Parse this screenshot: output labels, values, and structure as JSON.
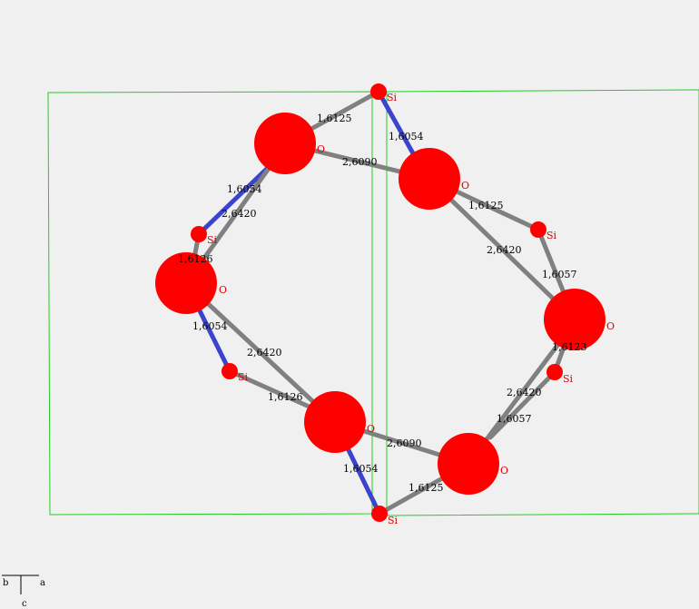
{
  "colors": {
    "background": "#f0f0f0",
    "cell": "#22cc22",
    "atom": "#ff0000",
    "atom_label": "#e00000",
    "bond_short": "#3a44cc",
    "bond_long": "#808080"
  },
  "atom_names": {
    "si": "Si",
    "o": "O"
  },
  "bond_labels": [
    "1,6125",
    "1,6054",
    "2,6090",
    "1,6054",
    "2,6420",
    "1,6126",
    "1,6125",
    "2,6420",
    "1,6057",
    "1,6054",
    "2,6420",
    "1,6126",
    "1,6123",
    "2,6420",
    "1,6057",
    "2,6090",
    "1,6054",
    "1,6125"
  ],
  "axes": {
    "b": "b",
    "a": "a",
    "c": "c"
  }
}
